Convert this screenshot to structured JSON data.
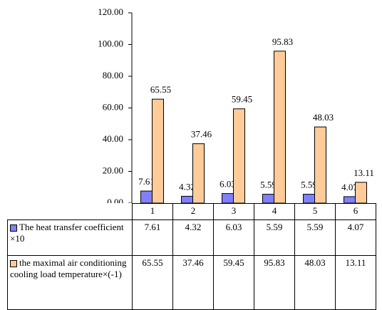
{
  "chart_data": {
    "type": "bar",
    "categories": [
      "1",
      "2",
      "3",
      "4",
      "5",
      "6"
    ],
    "series": [
      {
        "name": "The heat transfer coefficient ×10",
        "color": "#8080ff",
        "values": [
          7.61,
          4.32,
          6.03,
          5.59,
          5.59,
          4.07
        ]
      },
      {
        "name": "the maximal air conditioning cooling load temperature×(-1)",
        "color": "#ffcc99",
        "values": [
          65.55,
          37.46,
          59.45,
          95.83,
          48.03,
          13.11
        ]
      }
    ],
    "ylim": [
      0,
      120
    ],
    "yticks": [
      {
        "value": 0,
        "label": "0.00"
      },
      {
        "value": 20,
        "label": "20.00"
      },
      {
        "value": 40,
        "label": "40.00"
      },
      {
        "value": 60,
        "label": "60.00"
      },
      {
        "value": 80,
        "label": "80.00"
      },
      {
        "value": 100,
        "label": "100.00"
      },
      {
        "value": 120,
        "label": "120.00"
      }
    ],
    "grid": false
  }
}
